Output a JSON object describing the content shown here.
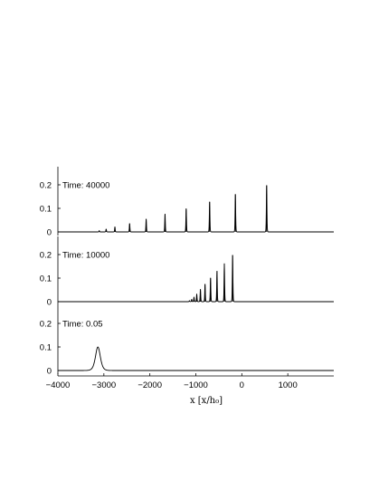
{
  "chart_data": {
    "type": "line",
    "shared_x_axis": {
      "label": "x [x/h₀]",
      "range": [
        -4000,
        2000
      ],
      "ticks": [
        -4000,
        -3000,
        -2000,
        -1000,
        0,
        1000
      ],
      "tick_labels": [
        "−4000",
        "−3000",
        "−2000",
        "−1000",
        "0",
        "1000"
      ]
    },
    "panels": [
      {
        "label": "Time:  40000",
        "y_range": [
          -0.02,
          0.25
        ],
        "y_ticks": [
          0,
          0.1,
          0.2
        ],
        "y_tick_labels": [
          "0",
          "0.1",
          "0.2"
        ],
        "peaks": [
          {
            "x": -3100,
            "height": 0.005
          },
          {
            "x": -2950,
            "height": 0.012
          },
          {
            "x": -2760,
            "height": 0.022
          },
          {
            "x": -2440,
            "height": 0.036
          },
          {
            "x": -2080,
            "height": 0.055
          },
          {
            "x": -1670,
            "height": 0.077
          },
          {
            "x": -1210,
            "height": 0.1
          },
          {
            "x": -700,
            "height": 0.128
          },
          {
            "x": -140,
            "height": 0.16
          },
          {
            "x": 540,
            "height": 0.198
          }
        ]
      },
      {
        "label": "Time:  10000",
        "y_range": [
          -0.02,
          0.25
        ],
        "y_ticks": [
          0,
          0.1,
          0.2
        ],
        "y_tick_labels": [
          "0",
          "0.1",
          "0.2"
        ],
        "peaks": [
          {
            "x": -1140,
            "height": 0.004
          },
          {
            "x": -1090,
            "height": 0.01
          },
          {
            "x": -1040,
            "height": 0.02
          },
          {
            "x": -980,
            "height": 0.033
          },
          {
            "x": -900,
            "height": 0.053
          },
          {
            "x": -800,
            "height": 0.075
          },
          {
            "x": -680,
            "height": 0.101
          },
          {
            "x": -540,
            "height": 0.13
          },
          {
            "x": -380,
            "height": 0.162
          },
          {
            "x": -200,
            "height": 0.198
          }
        ]
      },
      {
        "label": "Time:  0.05",
        "y_range": [
          -0.02,
          0.25
        ],
        "y_ticks": [
          0,
          0.1,
          0.2
        ],
        "y_tick_labels": [
          "0",
          "0.1",
          "0.2"
        ],
        "peaks": [
          {
            "x": -3130,
            "height": 0.1,
            "width": 70
          }
        ]
      }
    ]
  }
}
